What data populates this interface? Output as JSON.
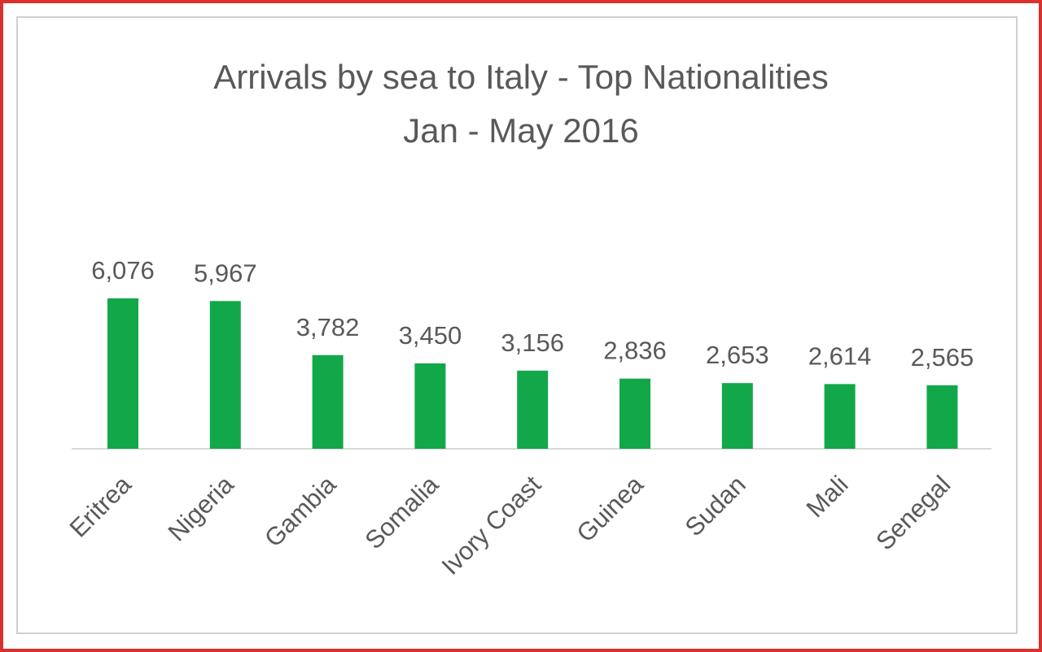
{
  "colors": {
    "bar": "#12a84a",
    "label": "#595959",
    "axis": "#d9d9d9",
    "frame": "#d9322e"
  },
  "chart_data": {
    "type": "bar",
    "title": "Arrivals by sea to Italy - Top Nationalities",
    "subtitle": "Jan - May 2016",
    "categories": [
      "Eritrea",
      "Nigeria",
      "Gambia",
      "Somalia",
      "Ivory Coast",
      "Guinea",
      "Sudan",
      "Mali",
      "Senegal"
    ],
    "values": [
      6076,
      5967,
      3782,
      3450,
      3156,
      2836,
      2653,
      2614,
      2565
    ],
    "value_labels": [
      "6,076",
      "5,967",
      "3,782",
      "3,450",
      "3,156",
      "2,836",
      "2,653",
      "2,614",
      "2,565"
    ],
    "xlabel": "",
    "ylabel": "",
    "grid": false,
    "legend": "none"
  }
}
